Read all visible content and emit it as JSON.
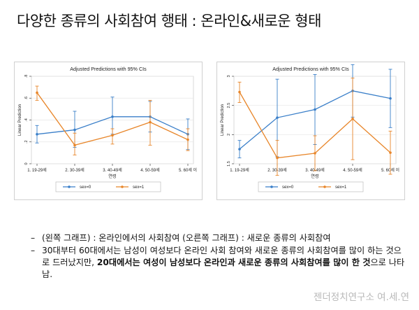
{
  "slide": {
    "title": "다양한 종류의 사회참여 행태 : 온라인&새로운 형태",
    "footer": "젠더정치연구소 여.세.연"
  },
  "notes": {
    "line1": "(왼쪽 그래프) : 온라인에서의 사회참여 (오른쪽 그래프) : 새로운 종류의 사회참여",
    "line2_plain": "30대부터 60대에서는 남성이 여성보다 온라인 사회 참여와 새로운 종류의 사회참여를 많이 하는 것으로 드러났지만, ",
    "line2_bold": "20대에서는 여성이 남성보다 온라인과 새로운 종류의 사회참여를 많이 한 것",
    "line2_end": "으로 나타남."
  },
  "colors": {
    "sex0": "#3a7fc9",
    "sex1": "#e8862a"
  },
  "chart_data": [
    {
      "type": "line",
      "title": "Adjusted Predictions with 95% CIs",
      "xlabel": "연령",
      "ylabel": "Linear Prediction",
      "categories": [
        "1. 19-29세",
        "2. 30-39세",
        "3. 40-49세",
        "4. 50-59세",
        "5. 60세 이"
      ],
      "ylim": [
        0,
        0.8
      ],
      "yticks": [
        "0",
        ".2",
        ".4",
        ".6",
        ".8"
      ],
      "legend_position": "bottom",
      "series": [
        {
          "name": "sex=0",
          "values": [
            0.27,
            0.31,
            0.43,
            0.43,
            0.27
          ],
          "ci_low": [
            0.19,
            0.15,
            0.27,
            0.29,
            0.13
          ],
          "ci_high": [
            0.35,
            0.48,
            0.61,
            0.57,
            0.41
          ]
        },
        {
          "name": "sex=1",
          "values": [
            0.65,
            0.17,
            0.26,
            0.38,
            0.22
          ],
          "ci_low": [
            0.58,
            0.08,
            0.18,
            0.17,
            0.12
          ],
          "ci_high": [
            0.71,
            0.28,
            0.32,
            0.58,
            0.32
          ]
        }
      ]
    },
    {
      "type": "line",
      "title": "Adjusted Predictions with 95% CIs",
      "xlabel": "연령",
      "ylabel": "Linear Prediction",
      "categories": [
        "1. 19-29세",
        "2. 30-39세",
        "3. 40-49세",
        "4. 50-59세",
        "5. 60세 이"
      ],
      "ylim": [
        1.5,
        3.0
      ],
      "yticks": [
        "1.5",
        "2",
        "2.5",
        "3"
      ],
      "legend_position": "bottom",
      "series": [
        {
          "name": "sex=0",
          "values": [
            1.75,
            2.29,
            2.43,
            2.75,
            2.62
          ],
          "ci_low": [
            1.6,
            1.62,
            1.83,
            2.3,
            2.12
          ],
          "ci_high": [
            1.9,
            2.95,
            3.03,
            3.2,
            3.12
          ]
        },
        {
          "name": "sex=1",
          "values": [
            2.73,
            1.6,
            1.68,
            2.27,
            1.69
          ],
          "ci_low": [
            2.55,
            1.3,
            1.38,
            1.57,
            1.32
          ],
          "ci_high": [
            2.9,
            1.9,
            1.98,
            2.97,
            2.06
          ]
        }
      ]
    }
  ]
}
